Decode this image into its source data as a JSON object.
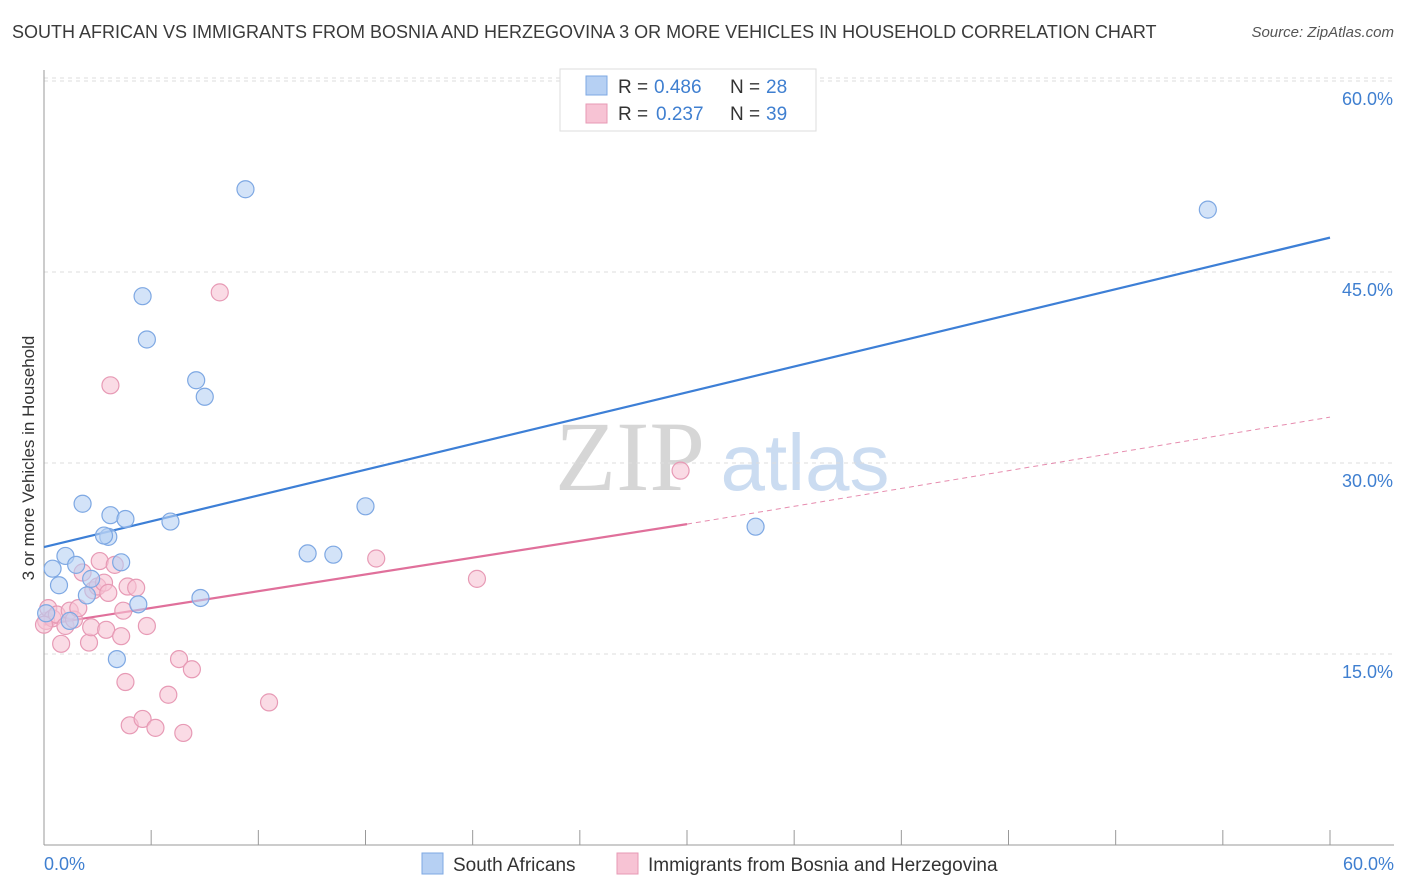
{
  "title": "SOUTH AFRICAN VS IMMIGRANTS FROM BOSNIA AND HERZEGOVINA 3 OR MORE VEHICLES IN HOUSEHOLD CORRELATION CHART",
  "source": "Source: ZipAtlas.com",
  "watermark": {
    "zip": "ZIP",
    "atlas": "atlas"
  },
  "colors": {
    "blue": "#3d7fd6",
    "blue_fill": "#b6d0f3",
    "pink": "#e0709b",
    "pink_fill": "#f7c3d4",
    "axis_text": "#3f7fd0",
    "grid": "#dddddd"
  },
  "legend": {
    "rows": [
      {
        "r_label": "R =",
        "r_value": "0.486",
        "n_label": "N =",
        "n_value": "28"
      },
      {
        "r_label": "R =",
        "r_value": "0.237",
        "n_label": "N =",
        "n_value": "39"
      }
    ]
  },
  "chart_data": {
    "type": "scatter",
    "title": "SOUTH AFRICAN VS IMMIGRANTS FROM BOSNIA AND HERZEGOVINA 3 OR MORE VEHICLES IN HOUSEHOLD CORRELATION CHART",
    "xlabel": "",
    "ylabel": "3 or more Vehicles in Household",
    "xlim": [
      0,
      60
    ],
    "ylim": [
      0,
      62
    ],
    "x_tick_labels": [
      "0.0%",
      "60.0%"
    ],
    "y_ticks": [
      15,
      30,
      45,
      60
    ],
    "y_tick_labels": [
      "15.0%",
      "30.0%",
      "45.0%",
      "60.0%"
    ],
    "grid": true,
    "legend_position": "top-center",
    "series": [
      {
        "name": "South Africans",
        "color": "#3d7fd6",
        "points": [
          [
            0.1,
            18.2
          ],
          [
            0.4,
            21.7
          ],
          [
            0.7,
            20.4
          ],
          [
            1.0,
            22.7
          ],
          [
            1.2,
            17.6
          ],
          [
            1.5,
            22.0
          ],
          [
            1.8,
            26.8
          ],
          [
            2.0,
            19.6
          ],
          [
            2.2,
            20.9
          ],
          [
            3.0,
            24.2
          ],
          [
            2.8,
            24.3
          ],
          [
            3.1,
            25.9
          ],
          [
            3.4,
            14.6
          ],
          [
            3.6,
            22.2
          ],
          [
            3.8,
            25.6
          ],
          [
            4.4,
            18.9
          ],
          [
            4.6,
            43.1
          ],
          [
            4.8,
            39.7
          ],
          [
            5.9,
            25.4
          ],
          [
            7.1,
            36.5
          ],
          [
            7.3,
            19.4
          ],
          [
            7.5,
            35.2
          ],
          [
            9.4,
            51.5
          ],
          [
            12.3,
            22.9
          ],
          [
            13.5,
            22.8
          ],
          [
            15.0,
            26.6
          ],
          [
            33.2,
            25.0
          ],
          [
            54.3,
            49.9
          ]
        ],
        "trend": {
          "x": [
            0,
            60
          ],
          "y": [
            23.4,
            47.7
          ]
        }
      },
      {
        "name": "Immigrants from Bosnia and Herzegovina",
        "color": "#e0709b",
        "points": [
          [
            0.1,
            17.6
          ],
          [
            0.2,
            18.6
          ],
          [
            0.4,
            17.8
          ],
          [
            0.6,
            18.1
          ],
          [
            0.8,
            15.8
          ],
          [
            1.0,
            17.2
          ],
          [
            1.2,
            18.4
          ],
          [
            1.4,
            17.7
          ],
          [
            1.6,
            18.6
          ],
          [
            1.8,
            21.4
          ],
          [
            2.1,
            15.9
          ],
          [
            2.2,
            17.1
          ],
          [
            2.3,
            20.0
          ],
          [
            2.5,
            20.3
          ],
          [
            2.6,
            22.3
          ],
          [
            2.8,
            20.6
          ],
          [
            3.0,
            19.8
          ],
          [
            2.9,
            16.9
          ],
          [
            3.1,
            36.1
          ],
          [
            3.3,
            22.0
          ],
          [
            3.6,
            16.4
          ],
          [
            3.7,
            18.4
          ],
          [
            3.8,
            12.8
          ],
          [
            3.9,
            20.3
          ],
          [
            4.0,
            9.4
          ],
          [
            4.3,
            20.2
          ],
          [
            4.6,
            9.9
          ],
          [
            4.8,
            17.2
          ],
          [
            5.2,
            9.2
          ],
          [
            5.8,
            11.8
          ],
          [
            6.3,
            14.6
          ],
          [
            6.5,
            8.8
          ],
          [
            6.9,
            13.8
          ],
          [
            8.2,
            43.4
          ],
          [
            10.5,
            11.2
          ],
          [
            15.5,
            22.5
          ],
          [
            20.2,
            20.9
          ],
          [
            29.7,
            29.4
          ],
          [
            0.0,
            17.3
          ]
        ],
        "trend": {
          "x": [
            0,
            30
          ],
          "y": [
            17.3,
            25.2
          ]
        },
        "trend_dashed": {
          "x": [
            30,
            60
          ],
          "y": [
            25.2,
            33.6
          ]
        }
      }
    ]
  }
}
